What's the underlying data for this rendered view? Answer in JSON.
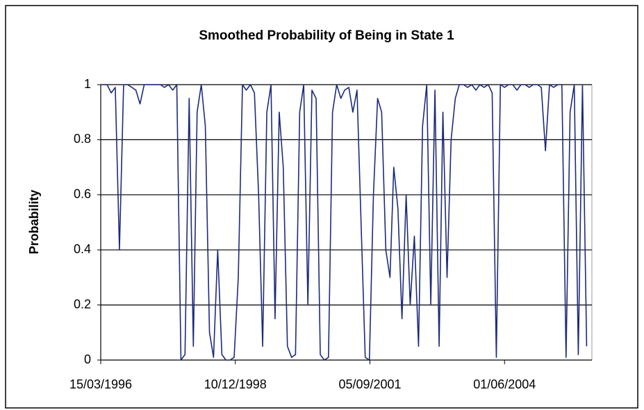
{
  "chart_data": {
    "type": "line",
    "title": "Smoothed Probability of Being in State 1",
    "y_label": "Probability",
    "x": [
      "1996-04-01",
      "1996-05-01",
      "1996-06-01",
      "1996-07-01",
      "1996-08-01",
      "1996-09-01",
      "1996-10-01",
      "1996-11-01",
      "1996-12-01",
      "1997-01-01",
      "1997-02-01",
      "1997-03-01",
      "1997-04-01",
      "1997-05-01",
      "1997-06-01",
      "1997-07-01",
      "1997-08-01",
      "1997-09-01",
      "1997-10-01",
      "1997-11-01",
      "1997-12-01",
      "1998-01-01",
      "1998-02-01",
      "1998-03-01",
      "1998-04-01",
      "1998-05-01",
      "1998-06-01",
      "1998-07-01",
      "1998-08-01",
      "1998-09-01",
      "1998-10-01",
      "1998-11-01",
      "1998-12-01",
      "1999-01-01",
      "1999-02-01",
      "1999-03-01",
      "1999-04-01",
      "1999-05-01",
      "1999-06-01",
      "1999-07-01",
      "1999-08-01",
      "1999-09-01",
      "1999-10-01",
      "1999-11-01",
      "1999-12-01",
      "2000-01-01",
      "2000-02-01",
      "2000-03-01",
      "2000-04-01",
      "2000-05-01",
      "2000-06-01",
      "2000-07-01",
      "2000-08-01",
      "2000-09-01",
      "2000-10-01",
      "2000-11-01",
      "2000-12-01",
      "2001-01-01",
      "2001-02-01",
      "2001-03-01",
      "2001-04-01",
      "2001-05-01",
      "2001-06-01",
      "2001-07-01",
      "2001-08-01",
      "2001-09-01",
      "2001-10-01",
      "2001-11-01",
      "2001-12-01",
      "2002-01-01",
      "2002-02-01",
      "2002-03-01",
      "2002-04-01",
      "2002-05-01",
      "2002-06-01",
      "2002-07-01",
      "2002-08-01",
      "2002-09-01",
      "2002-10-01",
      "2002-11-01",
      "2002-12-01",
      "2003-01-01",
      "2003-02-01",
      "2003-03-01",
      "2003-04-01",
      "2003-05-01",
      "2003-06-01",
      "2003-07-01",
      "2003-08-01",
      "2003-09-01",
      "2003-10-01",
      "2003-11-01",
      "2003-12-01",
      "2004-01-01",
      "2004-02-01",
      "2004-03-01",
      "2004-04-01",
      "2004-05-01",
      "2004-06-01",
      "2004-07-01",
      "2004-08-01",
      "2004-09-01",
      "2004-10-01",
      "2004-11-01",
      "2004-12-01",
      "2005-01-01",
      "2005-02-01",
      "2005-03-01",
      "2005-04-01",
      "2005-05-01",
      "2005-06-01",
      "2005-07-01",
      "2005-08-01",
      "2005-09-01",
      "2005-10-01",
      "2005-11-01",
      "2005-12-01",
      "2006-01-01",
      "2006-02-01"
    ],
    "values": [
      1,
      1,
      0.97,
      0.99,
      0.4,
      1,
      1,
      0.99,
      0.98,
      0.93,
      1,
      1,
      1,
      1,
      1,
      0.99,
      1,
      0.98,
      1,
      0,
      0.02,
      0.95,
      0.05,
      0.9,
      1,
      0.85,
      0.1,
      0.01,
      0.4,
      0.02,
      0,
      0,
      0.01,
      0.3,
      1,
      0.98,
      1,
      0.97,
      0.6,
      0.05,
      0.9,
      1,
      0.15,
      0.9,
      0.7,
      0.05,
      0.01,
      0.02,
      0.9,
      1,
      0.2,
      0.98,
      0.95,
      0.02,
      0,
      0.01,
      0.9,
      1,
      0.95,
      0.98,
      0.99,
      0.9,
      0.98,
      0.5,
      0.01,
      0,
      0.6,
      0.95,
      0.9,
      0.4,
      0.3,
      0.7,
      0.55,
      0.15,
      0.6,
      0.2,
      0.45,
      0.05,
      0.85,
      1,
      0.2,
      0.98,
      0.05,
      0.9,
      0.3,
      0.8,
      0.95,
      1,
      1,
      0.99,
      1,
      0.98,
      1,
      0.99,
      1,
      0.97,
      0.01,
      1,
      0.99,
      1,
      1,
      0.98,
      1,
      1,
      0.99,
      1,
      1,
      0.99,
      0.76,
      1,
      0.99,
      1,
      1,
      0.01,
      0.9,
      1,
      0.02,
      1,
      0.05
    ],
    "color": "#1c2a7a",
    "xlim": [
      "1996-03-15",
      "2006-03-12"
    ],
    "xticks": [
      {
        "value": "1996-03-15",
        "label": "15/03/1996"
      },
      {
        "value": "1998-12-10",
        "label": "10/12/1998"
      },
      {
        "value": "2001-09-05",
        "label": "05/09/2001"
      },
      {
        "value": "2004-06-01",
        "label": "01/06/2004"
      }
    ],
    "ylim": [
      0,
      1
    ],
    "yticks": [
      0,
      0.2,
      0.4,
      0.6,
      0.8,
      1
    ],
    "grid": true
  }
}
